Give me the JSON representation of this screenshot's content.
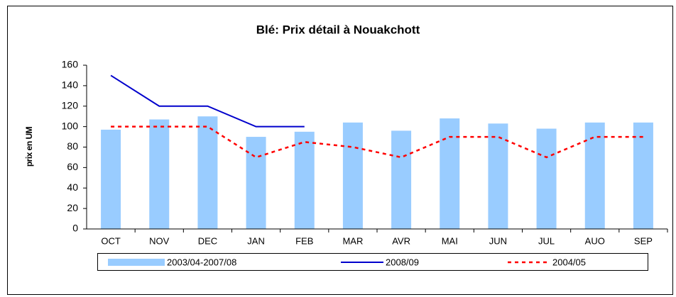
{
  "chart_data": {
    "type": "bar",
    "title": "Blé: Prix détail à Nouakchott",
    "y_label": "prix en UM",
    "categories": [
      "OCT",
      "NOV",
      "DEC",
      "JAN",
      "FEB",
      "MAR",
      "AVR",
      "MAI",
      "JUN",
      "JUL",
      "AUO",
      "SEP"
    ],
    "series": [
      {
        "name": "2003/04-2007/08",
        "type": "bar",
        "color": "#99ccff",
        "values": [
          97,
          107,
          110,
          90,
          95,
          104,
          96,
          108,
          103,
          98,
          104,
          104
        ]
      },
      {
        "name": "2008/09",
        "type": "line",
        "color": "#0000cc",
        "values": [
          150,
          120,
          120,
          100,
          100,
          null,
          null,
          null,
          null,
          null,
          null,
          null
        ]
      },
      {
        "name": "2004/05",
        "type": "dashed-line",
        "color": "#ff0000",
        "values": [
          100,
          100,
          100,
          70,
          85,
          80,
          70,
          90,
          90,
          70,
          90,
          90
        ]
      }
    ],
    "ylim": [
      0,
      160
    ],
    "yticks": [
      0,
      20,
      40,
      60,
      80,
      100,
      120,
      140,
      160
    ],
    "grid": false,
    "legend": "bottom"
  }
}
